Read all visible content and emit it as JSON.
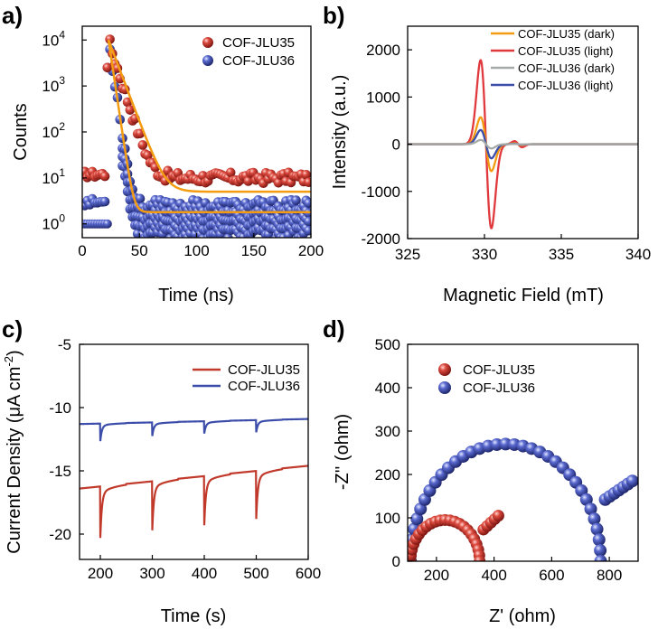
{
  "figure_labels": [
    "a)",
    "b)",
    "c)",
    "d)"
  ],
  "chart_data": [
    {
      "id": "a",
      "type": "scatter",
      "title": "",
      "xlabel": "Time (ns)",
      "ylabel": "Counts",
      "xlim": [
        0,
        200
      ],
      "ylog": true,
      "ylim_exp": [
        -0.3,
        4.3
      ],
      "xticks": [
        "0",
        "50",
        "100",
        "150",
        "200"
      ],
      "yticks": [
        {
          "base": "10",
          "exp": "0",
          "v": 0
        },
        {
          "base": "10",
          "exp": "1",
          "v": 1
        },
        {
          "base": "10",
          "exp": "2",
          "v": 2
        },
        {
          "base": "10",
          "exp": "3",
          "v": 3
        },
        {
          "base": "10",
          "exp": "4",
          "v": 4
        }
      ],
      "legend_position": "top-right",
      "series": [
        {
          "name": "COF-JLU35",
          "color": "#c0392b",
          "marker": "sphere",
          "peak_time": 23,
          "peak_counts": 10000,
          "decay_tau": 5.5,
          "baseline": 10,
          "fit_baseline": 5
        },
        {
          "name": "COF-JLU36",
          "color": "#3d4eaa",
          "marker": "sphere",
          "peak_time": 23,
          "peak_counts": 10000,
          "decay_tau": 2.6,
          "baseline": 2.5,
          "fit_baseline": 1.8
        }
      ],
      "fit_line_color": "#f39c12"
    },
    {
      "id": "b",
      "type": "line",
      "title": "",
      "xlabel": "Magnetic Field (mT)",
      "ylabel": "Intensity (a.u.)",
      "xlim": [
        325,
        340
      ],
      "ylim": [
        -2000,
        2500
      ],
      "xticks": [
        "325",
        "330",
        "335",
        "340"
      ],
      "yticks": [
        "-2000",
        "-1000",
        "0",
        "1000",
        "2000"
      ],
      "legend_position": "top-right",
      "center_field": 330.1,
      "series": [
        {
          "name": "COF-JLU35 (dark)",
          "color": "#f39c12",
          "amplitude": 570
        },
        {
          "name": "COF-JLU35 (light)",
          "color": "#e0393e",
          "amplitude": 1780
        },
        {
          "name": "COF-JLU36 (dark)",
          "color": "#a6aaa7",
          "amplitude": 90
        },
        {
          "name": "COF-JLU36 (light)",
          "color": "#3d4eaa",
          "amplitude": 300
        }
      ]
    },
    {
      "id": "c",
      "type": "line",
      "title": "",
      "xlabel": "Time (s)",
      "ylabel": "Current Density (μA cm",
      "ylabel_sup": "-2",
      "ylabel_end": ")",
      "xlim": [
        160,
        600
      ],
      "ylim": [
        -22,
        -5
      ],
      "xticks": [
        "200",
        "300",
        "400",
        "500",
        "600"
      ],
      "yticks": [
        "-5",
        "-10",
        "-15",
        "-20"
      ],
      "legend_position": "top-right",
      "on_times": [
        200,
        300,
        400,
        500
      ],
      "series": [
        {
          "name": "COF-JLU35",
          "color": "#c0392b",
          "start": -16.4,
          "end": -14.6,
          "spike_depths": [
            -19.8,
            -19.2,
            -18.8,
            -18.3
          ]
        },
        {
          "name": "COF-JLU36",
          "color": "#3d4eaa",
          "start": -11.3,
          "end": -10.9,
          "spike_depths": [
            -12.5,
            -12.1,
            -11.9,
            -11.8
          ]
        }
      ]
    },
    {
      "id": "d",
      "type": "scatter",
      "title": "",
      "xlabel": "Z' (ohm)",
      "ylabel": "-Z'' (ohm)",
      "xlim": [
        100,
        900
      ],
      "ylim": [
        0,
        500
      ],
      "xticks": [
        "200",
        "400",
        "600",
        "800"
      ],
      "yticks": [
        "0",
        "100",
        "200",
        "300",
        "400",
        "500"
      ],
      "legend_position": "top-left",
      "series": [
        {
          "name": "COF-JLU35",
          "color": "#c0392b",
          "arc_start": 110,
          "arc_end": 350,
          "arc_height": 95,
          "tail_end": [
            415,
            105
          ]
        },
        {
          "name": "COF-JLU36",
          "color": "#3d4eaa",
          "arc_start": 110,
          "arc_end": 770,
          "arc_height": 270,
          "tail_end": [
            880,
            185
          ]
        }
      ]
    }
  ]
}
